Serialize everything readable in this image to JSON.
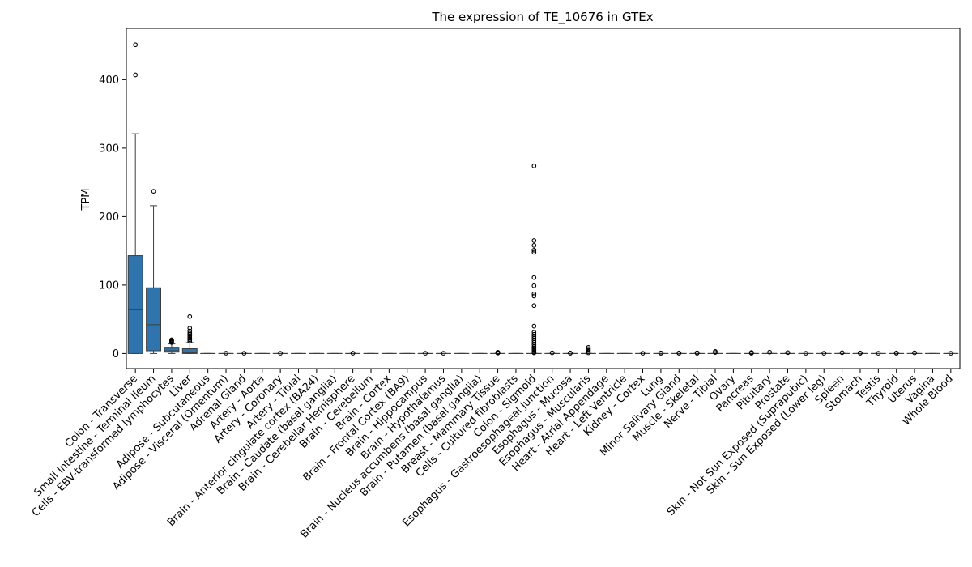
{
  "colors": {
    "box": "#2f74ad",
    "line": "#3d3d3d",
    "frame": "#000000",
    "background": "#ffffff"
  },
  "chart_data": {
    "type": "box",
    "title": "The expression of TE_10676 in GTEx",
    "ylabel": "TPM",
    "xlabel": "",
    "ylim": [
      -22,
      475
    ],
    "yticks": [
      0,
      100,
      200,
      300,
      400
    ],
    "grid": false,
    "legend": "none",
    "categories": [
      "Colon - Transverse",
      "Small Intestine - Terminal Ileum",
      "Cells - EBV-transformed lymphocytes",
      "Liver",
      "Adipose - Subcutaneous",
      "Adipose - Visceral (Omentum)",
      "Adrenal Gland",
      "Artery - Aorta",
      "Artery - Coronary",
      "Artery - Tibial",
      "Brain - Anterior cingulate cortex (BA24)",
      "Brain - Caudate (basal ganglia)",
      "Brain - Cerebellar Hemisphere",
      "Brain - Cerebellum",
      "Brain - Cortex",
      "Brain - Frontal Cortex (BA9)",
      "Brain - Hippocampus",
      "Brain - Hypothalamus",
      "Brain - Nucleus accumbens (basal ganglia)",
      "Brain - Putamen (basal ganglia)",
      "Breast - Mammary Tissue",
      "Cells - Cultured fibroblasts",
      "Colon - Sigmoid",
      "Esophagus - Gastroesophageal Junction",
      "Esophagus - Mucosa",
      "Esophagus - Muscularis",
      "Heart - Atrial Appendage",
      "Heart - Left Ventricle",
      "Kidney - Cortex",
      "Lung",
      "Minor Salivary Gland",
      "Muscle - Skeletal",
      "Nerve - Tibial",
      "Ovary",
      "Pancreas",
      "Pituitary",
      "Prostate",
      "Skin - Not Sun Exposed (Suprapubic)",
      "Skin - Sun Exposed (Lower leg)",
      "Spleen",
      "Stomach",
      "Testis",
      "Thyroid",
      "Uterus",
      "Vagina",
      "Whole Blood"
    ],
    "boxes": [
      {
        "q1": 0,
        "median": 64,
        "q3": 143,
        "whislo": 0,
        "whishi": 321,
        "fliers": [
          407,
          451
        ]
      },
      {
        "q1": 4,
        "median": 42,
        "q3": 96,
        "whislo": 0,
        "whishi": 216,
        "fliers": [
          237
        ]
      },
      {
        "q1": 2,
        "median": 4,
        "q3": 8,
        "whislo": 0,
        "whishi": 14,
        "fliers": [
          16,
          17,
          18,
          19,
          20
        ]
      },
      {
        "q1": 0,
        "median": 1,
        "q3": 7,
        "whislo": 0,
        "whishi": 16,
        "fliers": [
          18,
          20,
          22,
          24,
          26,
          28,
          30,
          33,
          37,
          54
        ]
      },
      {
        "q1": 0,
        "median": 0,
        "q3": 0,
        "whislo": 0,
        "whishi": 0,
        "fliers": []
      },
      {
        "q1": 0,
        "median": 0,
        "q3": 0,
        "whislo": 0,
        "whishi": 0,
        "fliers": [
          0.5
        ]
      },
      {
        "q1": 0,
        "median": 0,
        "q3": 0,
        "whislo": 0,
        "whishi": 0,
        "fliers": [
          0.4
        ]
      },
      {
        "q1": 0,
        "median": 0,
        "q3": 0,
        "whislo": 0,
        "whishi": 0,
        "fliers": []
      },
      {
        "q1": 0,
        "median": 0,
        "q3": 0,
        "whislo": 0,
        "whishi": 0,
        "fliers": [
          0.4
        ]
      },
      {
        "q1": 0,
        "median": 0,
        "q3": 0,
        "whislo": 0,
        "whishi": 0,
        "fliers": []
      },
      {
        "q1": 0,
        "median": 0,
        "q3": 0,
        "whislo": 0,
        "whishi": 0,
        "fliers": []
      },
      {
        "q1": 0,
        "median": 0,
        "q3": 0,
        "whislo": 0,
        "whishi": 0,
        "fliers": []
      },
      {
        "q1": 0,
        "median": 0,
        "q3": 0,
        "whislo": 0,
        "whishi": 0,
        "fliers": [
          0.5
        ]
      },
      {
        "q1": 0,
        "median": 0,
        "q3": 0,
        "whislo": 0,
        "whishi": 0,
        "fliers": []
      },
      {
        "q1": 0,
        "median": 0,
        "q3": 0,
        "whislo": 0,
        "whishi": 0,
        "fliers": []
      },
      {
        "q1": 0,
        "median": 0,
        "q3": 0,
        "whislo": 0,
        "whishi": 0,
        "fliers": []
      },
      {
        "q1": 0,
        "median": 0,
        "q3": 0,
        "whislo": 0,
        "whishi": 0,
        "fliers": [
          0.4
        ]
      },
      {
        "q1": 0,
        "median": 0,
        "q3": 0,
        "whislo": 0,
        "whishi": 0,
        "fliers": [
          0.4
        ]
      },
      {
        "q1": 0,
        "median": 0,
        "q3": 0,
        "whislo": 0,
        "whishi": 0,
        "fliers": []
      },
      {
        "q1": 0,
        "median": 0,
        "q3": 0,
        "whislo": 0,
        "whishi": 0,
        "fliers": []
      },
      {
        "q1": 0,
        "median": 0,
        "q3": 0,
        "whislo": 0,
        "whishi": 0,
        "fliers": [
          0.6,
          1.2,
          1.8
        ]
      },
      {
        "q1": 0,
        "median": 0,
        "q3": 0,
        "whislo": 0,
        "whishi": 0,
        "fliers": []
      },
      {
        "q1": 0,
        "median": 0,
        "q3": 0,
        "whislo": 0,
        "whishi": 0,
        "fliers": [
          1,
          2,
          4,
          6,
          8,
          10,
          13,
          16,
          19,
          22,
          25,
          28,
          31,
          40,
          70,
          84,
          87,
          99,
          111,
          148,
          151,
          158,
          165,
          274
        ]
      },
      {
        "q1": 0,
        "median": 0,
        "q3": 0,
        "whislo": 0,
        "whishi": 0,
        "fliers": [
          1
        ]
      },
      {
        "q1": 0,
        "median": 0,
        "q3": 0,
        "whislo": 0,
        "whishi": 0,
        "fliers": [
          0.4,
          0.8
        ]
      },
      {
        "q1": 0,
        "median": 0,
        "q3": 0,
        "whislo": 0,
        "whishi": 0,
        "fliers": [
          1,
          3,
          5,
          7,
          9
        ]
      },
      {
        "q1": 0,
        "median": 0,
        "q3": 0,
        "whislo": 0,
        "whishi": 0,
        "fliers": []
      },
      {
        "q1": 0,
        "median": 0,
        "q3": 0,
        "whislo": 0,
        "whishi": 0,
        "fliers": []
      },
      {
        "q1": 0,
        "median": 0,
        "q3": 0,
        "whislo": 0,
        "whishi": 0,
        "fliers": [
          0.4
        ]
      },
      {
        "q1": 0,
        "median": 0,
        "q3": 0,
        "whislo": 0,
        "whishi": 0,
        "fliers": [
          0.4,
          0.8
        ]
      },
      {
        "q1": 0,
        "median": 0,
        "q3": 0,
        "whislo": 0,
        "whishi": 0,
        "fliers": [
          0.4,
          0.8
        ]
      },
      {
        "q1": 0,
        "median": 0,
        "q3": 0,
        "whislo": 0,
        "whishi": 0,
        "fliers": [
          0.4,
          1
        ]
      },
      {
        "q1": 0,
        "median": 0,
        "q3": 0,
        "whislo": 0,
        "whishi": 0,
        "fliers": [
          1.5,
          3
        ]
      },
      {
        "q1": 0,
        "median": 0,
        "q3": 0,
        "whislo": 0,
        "whishi": 0,
        "fliers": []
      },
      {
        "q1": 0,
        "median": 0,
        "q3": 0,
        "whislo": 0,
        "whishi": 0,
        "fliers": [
          0.4,
          0.8,
          1.5
        ]
      },
      {
        "q1": 0,
        "median": 0,
        "q3": 0,
        "whislo": 0,
        "whishi": 0,
        "fliers": [
          2
        ]
      },
      {
        "q1": 0,
        "median": 0,
        "q3": 0,
        "whislo": 0,
        "whishi": 0,
        "fliers": [
          1.2
        ]
      },
      {
        "q1": 0,
        "median": 0,
        "q3": 0,
        "whislo": 0,
        "whishi": 0,
        "fliers": [
          0.4
        ]
      },
      {
        "q1": 0,
        "median": 0,
        "q3": 0,
        "whislo": 0,
        "whishi": 0,
        "fliers": [
          0.4
        ]
      },
      {
        "q1": 0,
        "median": 0,
        "q3": 0,
        "whislo": 0,
        "whishi": 0,
        "fliers": [
          1.2
        ]
      },
      {
        "q1": 0,
        "median": 0,
        "q3": 0,
        "whislo": 0,
        "whishi": 0,
        "fliers": [
          0.4,
          0.8
        ]
      },
      {
        "q1": 0,
        "median": 0,
        "q3": 0,
        "whislo": 0,
        "whishi": 0,
        "fliers": [
          0.4
        ]
      },
      {
        "q1": 0,
        "median": 0,
        "q3": 0,
        "whislo": 0,
        "whishi": 0,
        "fliers": [
          0.4,
          0.8
        ]
      },
      {
        "q1": 0,
        "median": 0,
        "q3": 0,
        "whislo": 0,
        "whishi": 0,
        "fliers": [
          1
        ]
      },
      {
        "q1": 0,
        "median": 0,
        "q3": 0,
        "whislo": 0,
        "whishi": 0,
        "fliers": []
      },
      {
        "q1": 0,
        "median": 0,
        "q3": 0,
        "whislo": 0,
        "whishi": 0,
        "fliers": [
          0.4
        ]
      }
    ]
  }
}
